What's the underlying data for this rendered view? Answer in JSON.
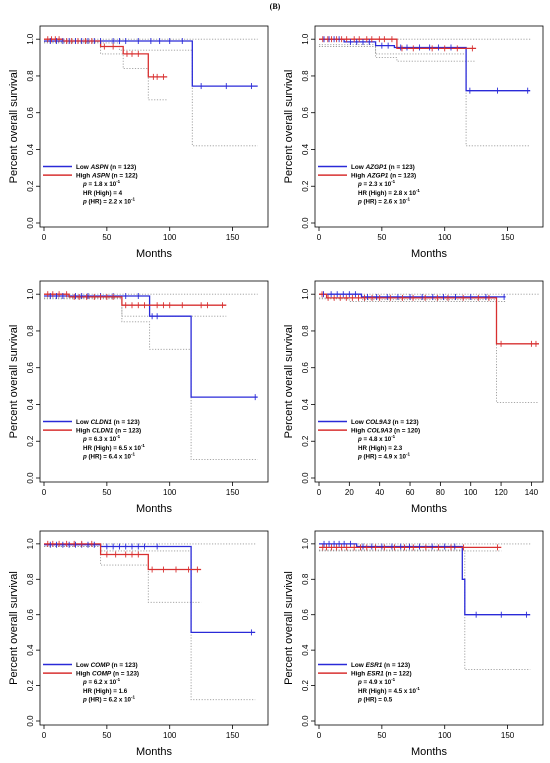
{
  "figure_label": "(B)",
  "chart_data": [
    {
      "type": "line",
      "gene": "ASPN",
      "xlabel": "Months",
      "ylabel": "Percent overall survival",
      "xlim": [
        0,
        175
      ],
      "ylim": [
        0,
        1.05
      ],
      "xticks": [
        "0",
        "50",
        "100",
        "150"
      ],
      "yticks": [
        "0.0",
        "0.2",
        "0.4",
        "0.6",
        "0.8",
        "1.0"
      ],
      "legend_position": "bottom-left",
      "legend": {
        "low": "Low ASPN (n = 123)",
        "high": "High ASPN (n = 122)",
        "stats": [
          "p = 1.8 x 10-1",
          "HR (High) = 4",
          "p (HR) = 2.2 x 10-1"
        ]
      },
      "colors": {
        "low": "#2a2ad8",
        "high": "#d83030",
        "ci": "#9a9a9a"
      },
      "series": [
        {
          "name": "Low ASPN (n = 123)",
          "x": [
            0,
            118,
            118,
            170
          ],
          "y": [
            0.99,
            0.99,
            0.745,
            0.745
          ]
        },
        {
          "name": "High ASPN (n = 122)",
          "x": [
            0,
            15,
            15,
            45,
            45,
            63,
            63,
            83,
            83,
            98
          ],
          "y": [
            1.0,
            1.0,
            0.99,
            0.99,
            0.96,
            0.96,
            0.92,
            0.92,
            0.795,
            0.795
          ]
        }
      ],
      "censor_low": [
        5,
        10,
        15,
        20,
        25,
        30,
        35,
        40,
        45,
        55,
        60,
        65,
        75,
        85,
        92,
        100,
        110,
        125,
        145,
        165
      ],
      "censor_high": [
        3,
        6,
        9,
        12,
        18,
        22,
        27,
        33,
        38,
        48,
        55,
        66,
        70,
        75,
        87,
        90,
        95
      ],
      "ci": [
        {
          "x": [
            0,
            170
          ],
          "y": [
            1.0,
            1.0
          ]
        },
        {
          "x": [
            0,
            60,
            60,
            118,
            118,
            170
          ],
          "y": [
            0.98,
            0.98,
            0.94,
            0.94,
            0.42,
            0.42
          ]
        },
        {
          "x": [
            0,
            45,
            45,
            63,
            63,
            83,
            83,
            98
          ],
          "y": [
            0.985,
            0.985,
            0.92,
            0.92,
            0.84,
            0.84,
            0.67,
            0.67
          ]
        }
      ]
    },
    {
      "type": "line",
      "gene": "AZGP1",
      "xlabel": "Months",
      "ylabel": "Percent overall survival",
      "xlim": [
        0,
        175
      ],
      "ylim": [
        0,
        1.05
      ],
      "xticks": [
        "0",
        "50",
        "100",
        "150"
      ],
      "yticks": [
        "0.0",
        "0.2",
        "0.4",
        "0.6",
        "0.8",
        "1.0"
      ],
      "legend_position": "bottom-left",
      "legend": {
        "low": "Low AZGP1 (n = 123)",
        "high": "High AZGP1 (n = 123)",
        "stats": [
          "p = 2.3 x 10-1",
          "HR (High) = 2.8 x 10-1",
          "p (HR) = 2.6 x 10-1"
        ]
      },
      "colors": {
        "low": "#2a2ad8",
        "high": "#d83030",
        "ci": "#9a9a9a"
      },
      "series": [
        {
          "name": "Low AZGP1 (n = 123)",
          "x": [
            0,
            20,
            20,
            45,
            45,
            60,
            60,
            117,
            117,
            168
          ],
          "y": [
            1.0,
            1.0,
            0.985,
            0.985,
            0.965,
            0.965,
            0.955,
            0.955,
            0.72,
            0.72
          ]
        },
        {
          "name": "High AZGP1 (n = 123)",
          "x": [
            0,
            62,
            62,
            125
          ],
          "y": [
            1.0,
            1.0,
            0.95,
            0.95
          ]
        }
      ],
      "censor_low": [
        4,
        8,
        12,
        16,
        25,
        30,
        35,
        40,
        50,
        55,
        65,
        70,
        80,
        88,
        95,
        105,
        120,
        142,
        166
      ],
      "censor_high": [
        3,
        7,
        10,
        14,
        18,
        22,
        28,
        32,
        38,
        42,
        48,
        52,
        58,
        66,
        75,
        90,
        100,
        110,
        122
      ],
      "ci": [
        {
          "x": [
            0,
            168
          ],
          "y": [
            1.0,
            1.0
          ]
        },
        {
          "x": [
            0,
            45,
            45,
            117,
            117,
            168
          ],
          "y": [
            0.96,
            0.96,
            0.92,
            0.92,
            0.42,
            0.42
          ]
        },
        {
          "x": [
            0,
            45,
            45,
            62,
            62,
            125
          ],
          "y": [
            0.97,
            0.97,
            0.9,
            0.9,
            0.88,
            0.88
          ]
        }
      ]
    },
    {
      "type": "line",
      "gene": "CLDN1",
      "xlabel": "Months",
      "ylabel": "Percent overall survival",
      "xlim": [
        0,
        175
      ],
      "ylim": [
        0,
        1.05
      ],
      "xticks": [
        "0",
        "50",
        "100",
        "150"
      ],
      "yticks": [
        "0.0",
        "0.2",
        "0.4",
        "0.6",
        "0.8",
        "1.0"
      ],
      "legend_position": "bottom-left",
      "legend": {
        "low": "Low CLDN1 (n = 123)",
        "high": "High CLDN1 (n = 123)",
        "stats": [
          "p = 6.3 x 10-1",
          "HR (High) = 6.5 x 10-1",
          "p (HR) = 6.4 x 10-1"
        ]
      },
      "colors": {
        "low": "#2a2ad8",
        "high": "#d83030",
        "ci": "#9a9a9a"
      },
      "series": [
        {
          "name": "Low CLDN1 (n = 123)",
          "x": [
            0,
            84,
            84,
            117,
            117,
            170
          ],
          "y": [
            0.99,
            0.99,
            0.88,
            0.88,
            0.44,
            0.44
          ]
        },
        {
          "name": "High CLDN1 (n = 123)",
          "x": [
            0,
            20,
            20,
            62,
            62,
            145
          ],
          "y": [
            1.0,
            1.0,
            0.985,
            0.985,
            0.94,
            0.94
          ]
        }
      ],
      "censor_low": [
        5,
        10,
        15,
        25,
        30,
        35,
        45,
        55,
        65,
        75,
        86,
        90,
        168
      ],
      "censor_high": [
        3,
        7,
        12,
        18,
        24,
        28,
        34,
        40,
        45,
        50,
        55,
        65,
        70,
        75,
        80,
        90,
        95,
        100,
        110,
        125,
        130,
        142
      ],
      "ci": [
        {
          "x": [
            0,
            170
          ],
          "y": [
            1.0,
            1.0
          ]
        },
        {
          "x": [
            0,
            62,
            62,
            84,
            84,
            117,
            117,
            170
          ],
          "y": [
            0.98,
            0.98,
            0.85,
            0.85,
            0.7,
            0.7,
            0.1,
            0.1
          ]
        },
        {
          "x": [
            0,
            62,
            62,
            145
          ],
          "y": [
            0.975,
            0.975,
            0.88,
            0.88
          ]
        }
      ]
    },
    {
      "type": "line",
      "gene": "COL9A3",
      "xlabel": "Months",
      "ylabel": "Percent overall survival",
      "xlim": [
        0,
        145
      ],
      "ylim": [
        0,
        1.05
      ],
      "xticks": [
        "0",
        "20",
        "40",
        "60",
        "80",
        "100",
        "120",
        "140"
      ],
      "yticks": [
        "0.0",
        "0.2",
        "0.4",
        "0.6",
        "0.8",
        "1.0"
      ],
      "legend_position": "bottom-left",
      "legend": {
        "low": "Low COL9A3 (n = 123)",
        "high": "High COL9A3 (n = 120)",
        "stats": [
          "p = 4.8 x 10-1",
          "HR (High) = 2.3",
          "p (HR) = 4.9 x 10-1"
        ]
      },
      "colors": {
        "low": "#2a2ad8",
        "high": "#d83030",
        "ci": "#9a9a9a"
      },
      "series": [
        {
          "name": "Low COL9A3 (n = 123)",
          "x": [
            0,
            28,
            28,
            123
          ],
          "y": [
            1.0,
            1.0,
            0.985,
            0.985
          ]
        },
        {
          "name": "High COL9A3 (n = 120)",
          "x": [
            0,
            5,
            5,
            117,
            117,
            145
          ],
          "y": [
            1.0,
            1.0,
            0.98,
            0.98,
            0.73,
            0.73
          ]
        }
      ],
      "censor_low": [
        3,
        8,
        12,
        16,
        20,
        24,
        32,
        38,
        45,
        52,
        60,
        68,
        75,
        82,
        90,
        100,
        110,
        122
      ],
      "censor_high": [
        2,
        6,
        10,
        14,
        18,
        22,
        26,
        30,
        35,
        40,
        47,
        55,
        62,
        70,
        78,
        85,
        95,
        105,
        112,
        120,
        140,
        143
      ],
      "ci": [
        {
          "x": [
            0,
            145
          ],
          "y": [
            1.0,
            1.0
          ]
        },
        {
          "x": [
            0,
            28,
            28,
            117,
            117,
            145
          ],
          "y": [
            0.98,
            0.98,
            0.97,
            0.97,
            0.41,
            0.41
          ]
        },
        {
          "x": [
            0,
            20,
            20,
            123
          ],
          "y": [
            0.975,
            0.975,
            0.96,
            0.96
          ]
        }
      ]
    },
    {
      "type": "line",
      "gene": "COMP",
      "xlabel": "Months",
      "ylabel": "Percent overall survival",
      "xlim": [
        0,
        175
      ],
      "ylim": [
        0,
        1.05
      ],
      "xticks": [
        "0",
        "50",
        "100",
        "150"
      ],
      "yticks": [
        "0.0",
        "0.2",
        "0.4",
        "0.6",
        "0.8",
        "1.0"
      ],
      "legend_position": "bottom-left",
      "legend": {
        "low": "Low COMP (n = 123)",
        "high": "High COMP (n = 123)",
        "stats": [
          "p = 6.2 x 10-1",
          "HR (High) = 1.6",
          "p (HR) = 6.2 x 10-1"
        ]
      },
      "colors": {
        "low": "#2a2ad8",
        "high": "#d83030",
        "ci": "#9a9a9a"
      },
      "series": [
        {
          "name": "Low COMP (n = 123)",
          "x": [
            0,
            45,
            45,
            117,
            117,
            168
          ],
          "y": [
            0.995,
            0.995,
            0.985,
            0.985,
            0.5,
            0.5
          ]
        },
        {
          "name": "High COMP (n = 123)",
          "x": [
            0,
            45,
            45,
            83,
            83,
            125
          ],
          "y": [
            1.0,
            1.0,
            0.94,
            0.94,
            0.855,
            0.855
          ]
        }
      ],
      "censor_low": [
        5,
        10,
        15,
        20,
        25,
        30,
        35,
        40,
        50,
        55,
        60,
        65,
        70,
        75,
        80,
        90,
        165
      ],
      "censor_high": [
        3,
        7,
        12,
        18,
        24,
        30,
        38,
        50,
        57,
        65,
        70,
        75,
        86,
        95,
        105,
        115,
        122
      ],
      "ci": [
        {
          "x": [
            0,
            168
          ],
          "y": [
            1.0,
            1.0
          ]
        },
        {
          "x": [
            0,
            45,
            45,
            117,
            117,
            168
          ],
          "y": [
            0.985,
            0.985,
            0.96,
            0.96,
            0.12,
            0.12
          ]
        },
        {
          "x": [
            0,
            45,
            45,
            83,
            83,
            125
          ],
          "y": [
            0.985,
            0.985,
            0.88,
            0.88,
            0.67,
            0.67
          ]
        }
      ]
    },
    {
      "type": "line",
      "gene": "ESR1",
      "xlabel": "Months",
      "ylabel": "Percent overall survival",
      "xlim": [
        0,
        175
      ],
      "ylim": [
        0,
        1.05
      ],
      "xticks": [
        "0",
        "50",
        "100",
        "150"
      ],
      "yticks": [
        "0.0",
        "0.2",
        "0.4",
        "0.6",
        "0.8",
        "1.0"
      ],
      "legend_position": "bottom-left",
      "legend": {
        "low": "Low ESR1 (n = 123)",
        "high": "High ESR1 (n = 122)",
        "stats": [
          "p = 4.9 x 10-1",
          "HR (High) = 4.5 x 10-1",
          "p (HR) = 0.5"
        ]
      },
      "colors": {
        "low": "#2a2ad8",
        "high": "#d83030",
        "ci": "#9a9a9a"
      },
      "series": [
        {
          "name": "Low ESR1 (n = 123)",
          "x": [
            0,
            30,
            30,
            114,
            114,
            116,
            116,
            168
          ],
          "y": [
            1.0,
            1.0,
            0.985,
            0.985,
            0.8,
            0.8,
            0.6,
            0.6
          ]
        },
        {
          "name": "High ESR1 (n = 122)",
          "x": [
            0,
            145
          ],
          "y": [
            0.98,
            0.98
          ]
        }
      ],
      "censor_low": [
        4,
        8,
        12,
        16,
        20,
        25,
        35,
        42,
        50,
        58,
        65,
        72,
        80,
        90,
        100,
        108,
        125,
        145,
        165
      ],
      "censor_high": [
        3,
        6,
        10,
        14,
        18,
        22,
        28,
        33,
        38,
        45,
        52,
        60,
        68,
        75,
        85,
        95,
        105,
        115,
        142
      ],
      "ci": [
        {
          "x": [
            0,
            168
          ],
          "y": [
            1.0,
            1.0
          ]
        },
        {
          "x": [
            0,
            114,
            114,
            116,
            116,
            168
          ],
          "y": [
            0.965,
            0.965,
            0.96,
            0.96,
            0.29,
            0.29
          ]
        },
        {
          "x": [
            0,
            145
          ],
          "y": [
            0.96,
            0.96
          ]
        }
      ]
    }
  ]
}
